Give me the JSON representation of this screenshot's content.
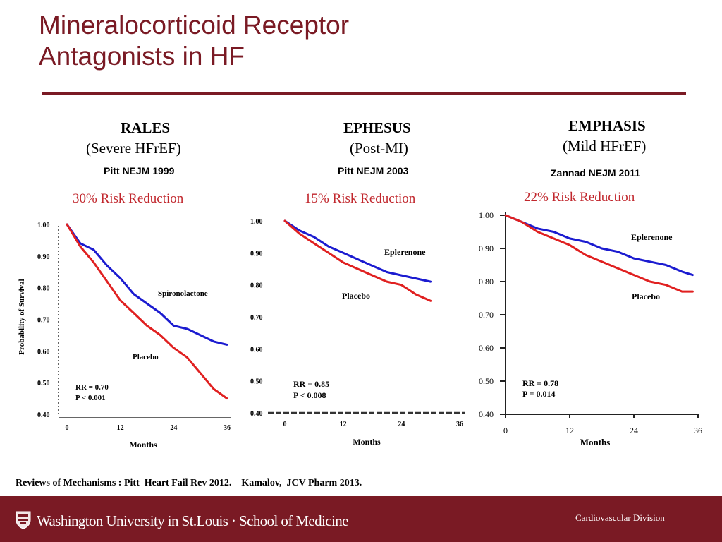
{
  "title": {
    "line1": "Mineralocorticoid  Receptor",
    "line2": "Antagonists in HF"
  },
  "colors": {
    "brand": "#7a1a24",
    "risk_text": "#c1272d",
    "placebo": "#e02020",
    "treatment": "#1b1bd0"
  },
  "trials": [
    {
      "name": "RALES",
      "subtitle": "(Severe HFrEF)",
      "citation": "Pitt NEJM 1999",
      "risk_reduction": "30% Risk Reduction",
      "y_axis_label": "Probability of Survival",
      "x_axis_label": "Months",
      "treatment_label": "Spironolactone",
      "placebo_label": "Placebo",
      "stat_rr": "RR = 0.70",
      "stat_p": "P < 0.001",
      "x_ticks": [
        "0",
        "12",
        "24",
        "36"
      ],
      "y_ticks": [
        "1.00",
        "0.90",
        "0.80",
        "0.70",
        "0.60",
        "0.50",
        "0.40"
      ]
    },
    {
      "name": "EPHESUS",
      "subtitle": "(Post-MI)",
      "citation": "Pitt NEJM 2003",
      "risk_reduction": "15% Risk Reduction",
      "x_axis_label": "Months",
      "treatment_label": "Eplerenone",
      "placebo_label": "Placebo",
      "stat_rr": "RR = 0.85",
      "stat_p": "P < 0.008",
      "x_ticks": [
        "0",
        "12",
        "24",
        "36"
      ],
      "y_ticks": [
        "1.00",
        "0.90",
        "0.80",
        "0.70",
        "0.60",
        "0.50",
        "0.40"
      ]
    },
    {
      "name": "EMPHASIS",
      "subtitle": "(Mild HFrEF)",
      "citation": "Zannad NEJM 2011",
      "risk_reduction": "22% Risk Reduction",
      "x_axis_label": "Months",
      "treatment_label": "Eplerenone",
      "placebo_label": "Placebo",
      "stat_rr": "RR = 0.78",
      "stat_p": "P = 0.014",
      "x_ticks": [
        "0",
        "12",
        "24",
        "36"
      ],
      "y_ticks": [
        "1.00",
        "0.90",
        "0.80",
        "0.70",
        "0.60",
        "0.50",
        "0.40"
      ]
    }
  ],
  "chart_data": [
    {
      "type": "line",
      "title": "RALES",
      "xlabel": "Months",
      "ylabel": "Probability of Survival",
      "xlim": [
        0,
        36
      ],
      "ylim": [
        0.4,
        1.0
      ],
      "series": [
        {
          "name": "Spironolactone",
          "x": [
            0,
            3,
            6,
            9,
            12,
            15,
            18,
            21,
            24,
            27,
            30,
            33,
            36
          ],
          "y": [
            1.0,
            0.94,
            0.92,
            0.87,
            0.83,
            0.78,
            0.75,
            0.72,
            0.68,
            0.67,
            0.65,
            0.63,
            0.62
          ]
        },
        {
          "name": "Placebo",
          "x": [
            0,
            3,
            6,
            9,
            12,
            15,
            18,
            21,
            24,
            27,
            30,
            33,
            36
          ],
          "y": [
            1.0,
            0.93,
            0.88,
            0.82,
            0.76,
            0.72,
            0.68,
            0.65,
            0.61,
            0.58,
            0.53,
            0.48,
            0.45
          ]
        }
      ]
    },
    {
      "type": "line",
      "title": "EPHESUS",
      "xlabel": "Months",
      "xlim": [
        0,
        36
      ],
      "ylim": [
        0.4,
        1.0
      ],
      "series": [
        {
          "name": "Eplerenone",
          "x": [
            0,
            3,
            6,
            9,
            12,
            15,
            18,
            21,
            24,
            27,
            30
          ],
          "y": [
            1.0,
            0.97,
            0.95,
            0.92,
            0.9,
            0.88,
            0.86,
            0.84,
            0.83,
            0.82,
            0.81
          ]
        },
        {
          "name": "Placebo",
          "x": [
            0,
            3,
            6,
            9,
            12,
            15,
            18,
            21,
            24,
            27,
            30
          ],
          "y": [
            1.0,
            0.96,
            0.93,
            0.9,
            0.87,
            0.85,
            0.83,
            0.81,
            0.8,
            0.77,
            0.75
          ]
        }
      ]
    },
    {
      "type": "line",
      "title": "EMPHASIS",
      "xlabel": "Months",
      "xlim": [
        0,
        36
      ],
      "ylim": [
        0.4,
        1.0
      ],
      "series": [
        {
          "name": "Eplerenone",
          "x": [
            0,
            3,
            6,
            9,
            12,
            15,
            18,
            21,
            24,
            27,
            30,
            33,
            35
          ],
          "y": [
            1.0,
            0.98,
            0.96,
            0.95,
            0.93,
            0.92,
            0.9,
            0.89,
            0.87,
            0.86,
            0.85,
            0.83,
            0.82
          ]
        },
        {
          "name": "Placebo",
          "x": [
            0,
            3,
            6,
            9,
            12,
            15,
            18,
            21,
            24,
            27,
            30,
            33,
            35
          ],
          "y": [
            1.0,
            0.98,
            0.95,
            0.93,
            0.91,
            0.88,
            0.86,
            0.84,
            0.82,
            0.8,
            0.79,
            0.77,
            0.77
          ]
        }
      ]
    }
  ],
  "footer": {
    "references": "Reviews of Mechanisms : Pitt  Heart Fail Rev 2012.    Kamalov,  JCV Pharm 2013.",
    "institution": "Washington University in St.Louis · School of Medicine",
    "division": "Cardiovascular Division"
  }
}
